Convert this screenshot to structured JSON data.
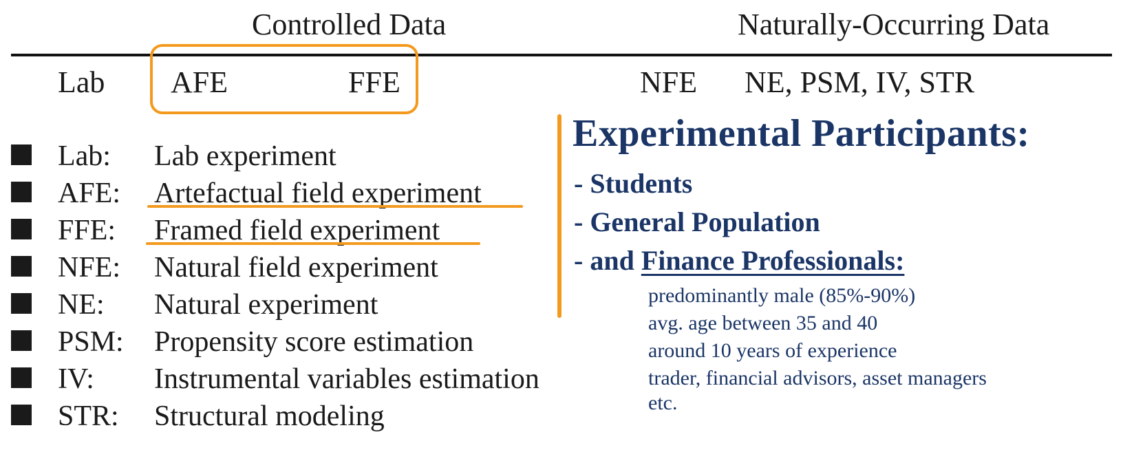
{
  "header": {
    "controlled": "Controlled Data",
    "natural": "Naturally-Occurring Data"
  },
  "categories": [
    "Lab",
    "AFE",
    "FFE",
    "NFE",
    "NE, PSM, IV, STR"
  ],
  "definitions": [
    {
      "abbr": "Lab:",
      "desc": "Lab experiment"
    },
    {
      "abbr": "AFE:",
      "desc": "Artefactual field experiment"
    },
    {
      "abbr": "FFE:",
      "desc": "Framed field experiment"
    },
    {
      "abbr": "NFE:",
      "desc": "Natural field experiment"
    },
    {
      "abbr": "NE:",
      "desc": "Natural experiment"
    },
    {
      "abbr": "PSM:",
      "desc": "Propensity score estimation"
    },
    {
      "abbr": "IV:",
      "desc": "Instrumental variables estimation"
    },
    {
      "abbr": "STR:",
      "desc": "Structural modeling"
    }
  ],
  "participants": {
    "title": "Experimental Participants:",
    "items": [
      "- Students",
      "- General Population"
    ],
    "last_prefix": "- and ",
    "last_emph": "Finance Professionals:",
    "details": [
      "predominantly male (85%-90%)",
      "avg. age between 35 and 40",
      "around 10 years of experience",
      "trader, financial advisors, asset managers",
      "etc."
    ]
  },
  "colors": {
    "accent": "#f39a1e",
    "navy": "#1a3566",
    "text": "#1a1a1a"
  }
}
